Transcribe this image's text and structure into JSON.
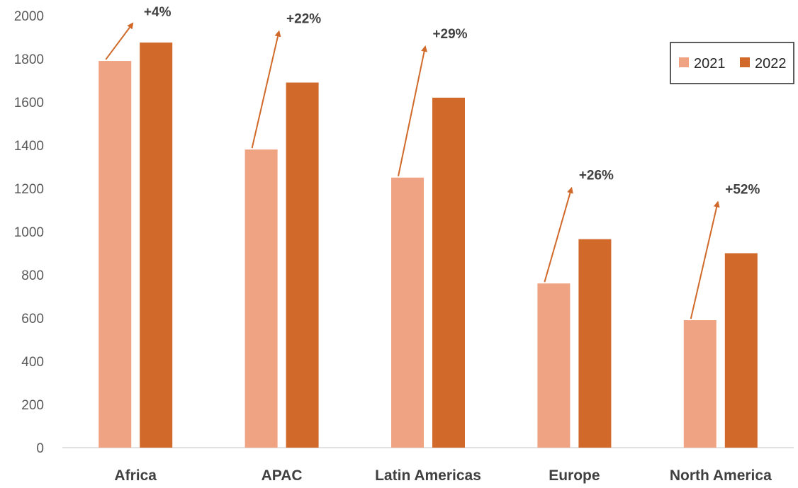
{
  "chart_data": {
    "type": "bar",
    "title": "",
    "xlabel": "",
    "ylabel": "",
    "ylim": [
      0,
      2000
    ],
    "yticks": [
      "0",
      "200",
      "400",
      "600",
      "800",
      "1000",
      "1200",
      "1400",
      "1600",
      "1800",
      "2000"
    ],
    "grid": false,
    "legend_position": "top-right",
    "categories": [
      "Africa",
      "APAC",
      "Latin Americas",
      "Europe",
      "North America"
    ],
    "series": [
      {
        "name": "2021",
        "color": "#f0a383",
        "values": [
          1790,
          1380,
          1250,
          760,
          590
        ]
      },
      {
        "name": "2022",
        "color": "#d0692a",
        "values": [
          1875,
          1690,
          1620,
          965,
          900
        ]
      }
    ],
    "annotations": [
      "+4%",
      "+22%",
      "+29%",
      "+26%",
      "+52%"
    ],
    "arrow_color": "#d0692a"
  }
}
